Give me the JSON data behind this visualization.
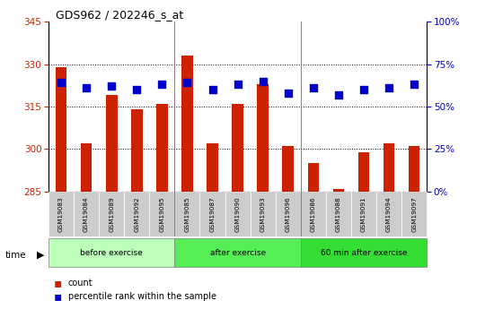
{
  "title": "GDS962 / 202246_s_at",
  "samples": [
    "GSM19083",
    "GSM19084",
    "GSM19089",
    "GSM19092",
    "GSM19095",
    "GSM19085",
    "GSM19087",
    "GSM19090",
    "GSM19093",
    "GSM19096",
    "GSM19086",
    "GSM19088",
    "GSM19091",
    "GSM19094",
    "GSM19097"
  ],
  "bar_values": [
    329,
    302,
    319,
    314,
    316,
    333,
    302,
    316,
    323,
    301,
    295,
    286,
    299,
    302,
    301
  ],
  "dot_values": [
    64,
    61,
    62,
    60,
    63,
    64,
    60,
    63,
    65,
    58,
    61,
    57,
    60,
    61,
    63
  ],
  "ymin": 285,
  "ymax": 345,
  "yticks": [
    285,
    300,
    315,
    330,
    345
  ],
  "y2min": 0,
  "y2max": 100,
  "y2ticks": [
    0,
    25,
    50,
    75,
    100
  ],
  "bar_color": "#cc2200",
  "dot_color": "#0000cc",
  "plot_bg_color": "#ffffff",
  "tick_label_color_left": "#cc2200",
  "tick_label_color_right": "#0000cc",
  "bar_width": 0.45,
  "dot_size": 28,
  "group_colors": [
    "#bbffbb",
    "#55ee55",
    "#33dd33"
  ],
  "group_labels": [
    "before exercise",
    "after exercise",
    "60 min after exercise"
  ],
  "group_boundaries": [
    0,
    5,
    10,
    15
  ],
  "cell_color": "#cccccc"
}
